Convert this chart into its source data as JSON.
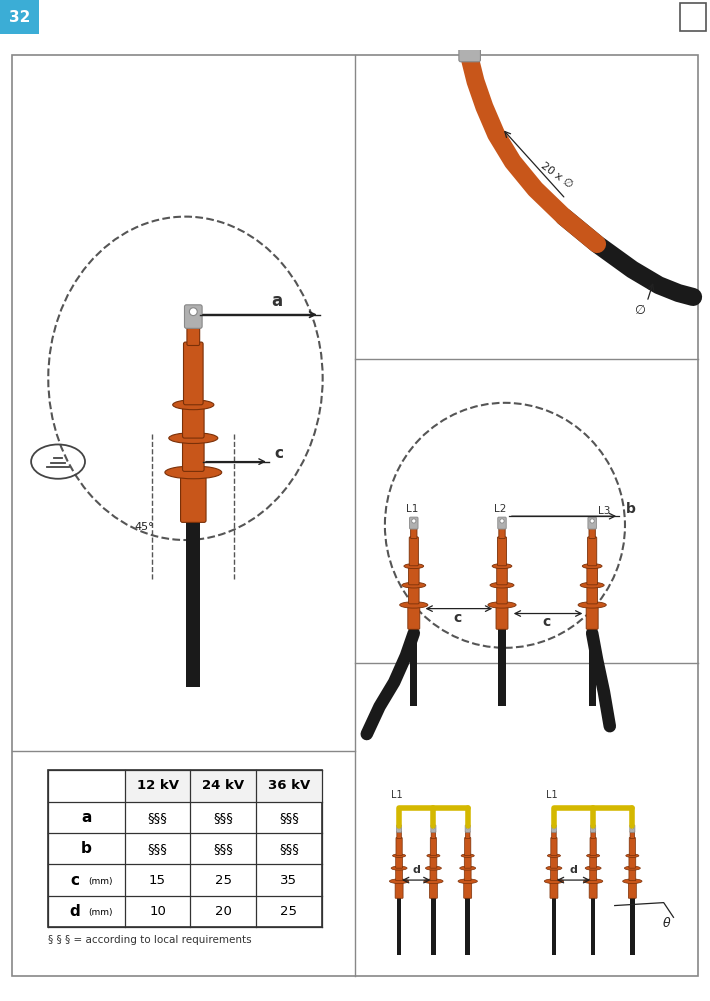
{
  "page_number": "32",
  "page_bg": "#ffffff",
  "header_bg": "#3badd6",
  "header_text_color": "#ffffff",
  "panel_border": "#888888",
  "table_headers": [
    "",
    "12 kV",
    "24 kV",
    "36 kV"
  ],
  "table_rows": [
    [
      "a",
      "§§§",
      "§§§",
      "§§§"
    ],
    [
      "b",
      "§§§",
      "§§§",
      "§§§"
    ],
    [
      "c (mm)",
      "15",
      "25",
      "35"
    ],
    [
      "d (mm)",
      "10",
      "20",
      "25"
    ]
  ],
  "table_note": "§ § § = according to local requirements",
  "cable_color": "#c8561a",
  "cable_dark": "#7a3008",
  "black_cable": "#1a1a1a",
  "yellow_cable": "#d4b800",
  "grey_lug": "#b0b0b0",
  "dashed_color": "#555555",
  "annotation_color": "#222222",
  "label_color": "#333333"
}
